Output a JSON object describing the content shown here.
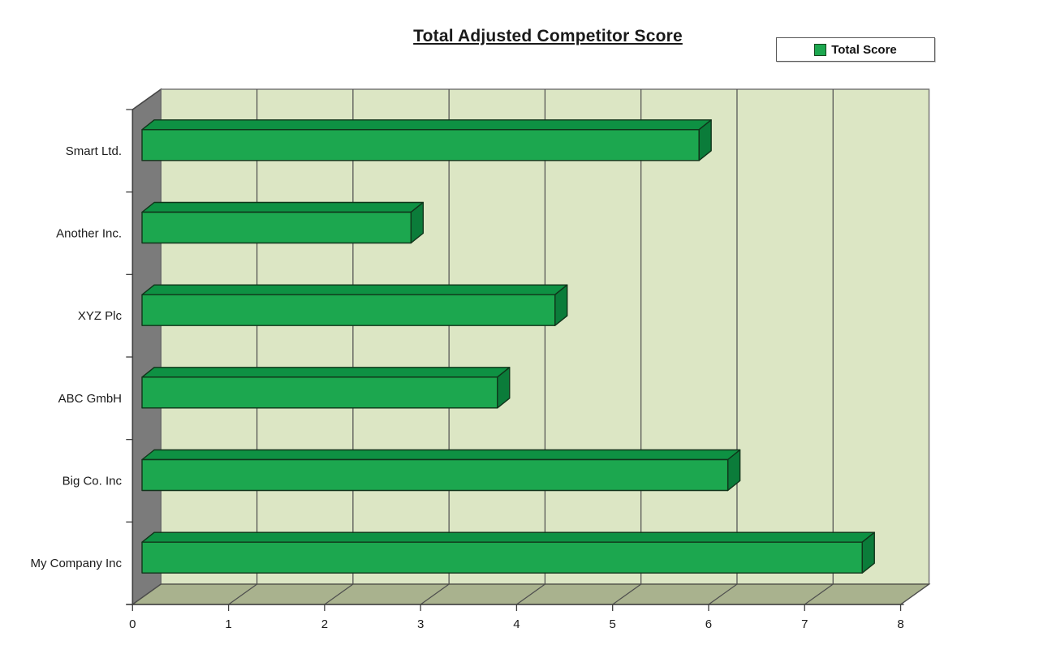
{
  "chart_data": {
    "type": "bar",
    "orientation": "horizontal",
    "style": "3d-extruded",
    "title": "Total Adjusted Competitor Score",
    "legend": {
      "label": "Total Score",
      "position": "top-right"
    },
    "categories": [
      "Smart Ltd.",
      "Another Inc.",
      "XYZ Plc",
      "ABC GmbH",
      "Big Co. Inc",
      "My Company Inc"
    ],
    "series": [
      {
        "name": "Total Score",
        "values": [
          5.9,
          2.9,
          4.4,
          3.8,
          6.2,
          7.6
        ]
      }
    ],
    "xlabel": "",
    "ylabel": "",
    "xlim": [
      0,
      8
    ],
    "x_ticks": [
      "0",
      "1",
      "2",
      "3",
      "4",
      "5",
      "6",
      "7",
      "8"
    ],
    "grid": true,
    "colors": {
      "bar_front": "#1CA74F",
      "bar_top": "#0E9143",
      "bar_end": "#0B7C3A",
      "bar_outline": "#10341a",
      "wall_back": "#DCE6C4",
      "wall_back_border": "#707070",
      "wall_left": "#7B7B7B",
      "wall_left_edge": "#464646",
      "floor": "#A9B28E",
      "floor_edge": "#4a4a42",
      "gridline": "#4D4D4D",
      "axis": "#3f3f3f",
      "text": "#1a1a1a",
      "background": "#FFFFFF"
    }
  }
}
